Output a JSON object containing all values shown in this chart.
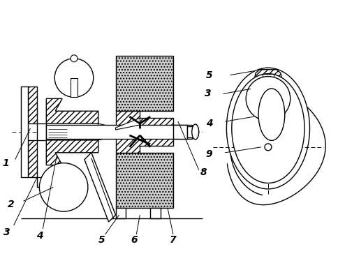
{
  "bg_color": "#ffffff",
  "lc": "#000000",
  "figsize": [
    4.85,
    3.77
  ],
  "dpi": 100,
  "lw": 1.0
}
